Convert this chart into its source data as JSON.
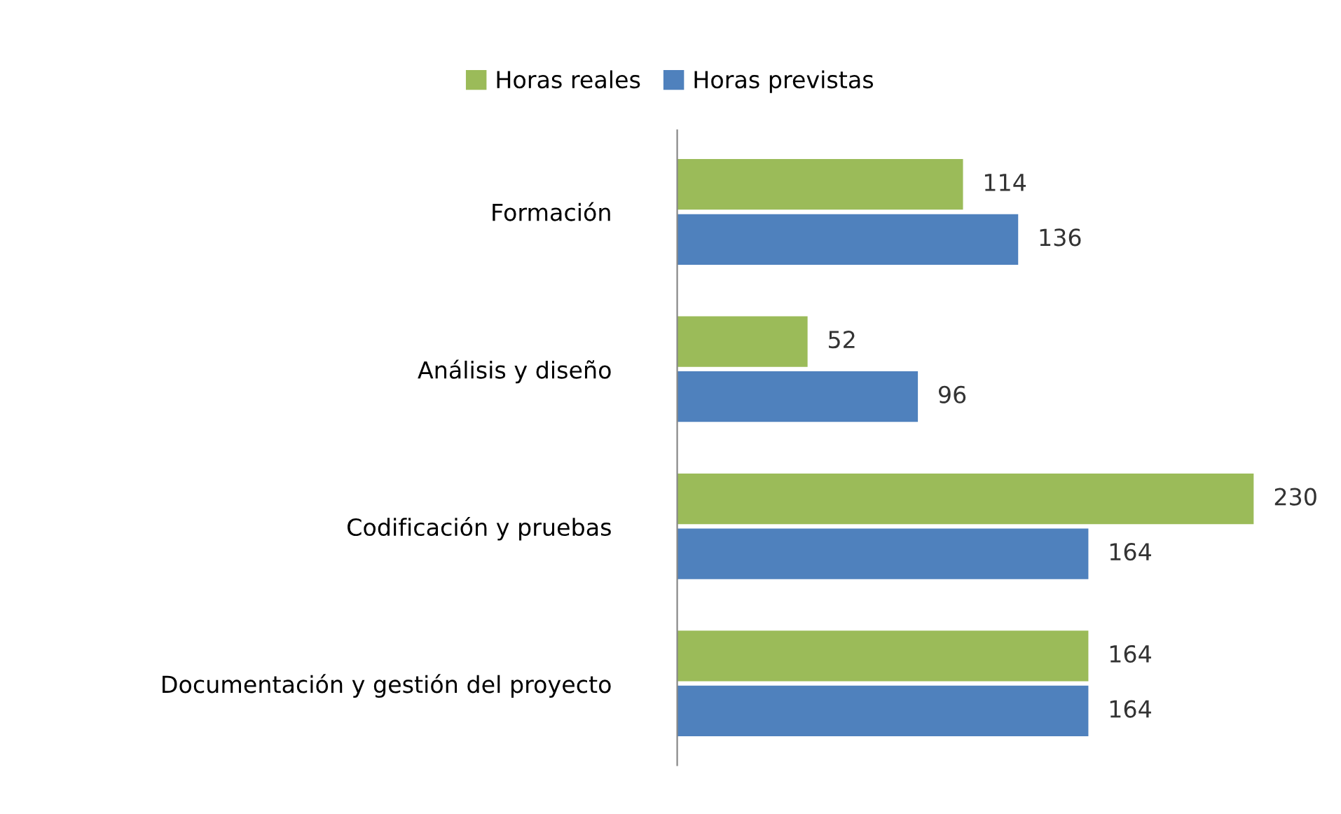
{
  "chart_data": {
    "type": "bar",
    "orientation": "horizontal",
    "categories": [
      "Formación",
      "Análisis y diseño",
      "Codificación y pruebas",
      "Documentación y gestión del proyecto"
    ],
    "series": [
      {
        "name": "Horas reales",
        "color": "#9bbb59",
        "values": [
          114,
          52,
          230,
          164
        ]
      },
      {
        "name": "Horas previstas",
        "color": "#4f81bd",
        "values": [
          136,
          96,
          164,
          164
        ]
      }
    ],
    "data_labels": true,
    "legend": "top",
    "grid": false,
    "tick_labels": "y"
  }
}
